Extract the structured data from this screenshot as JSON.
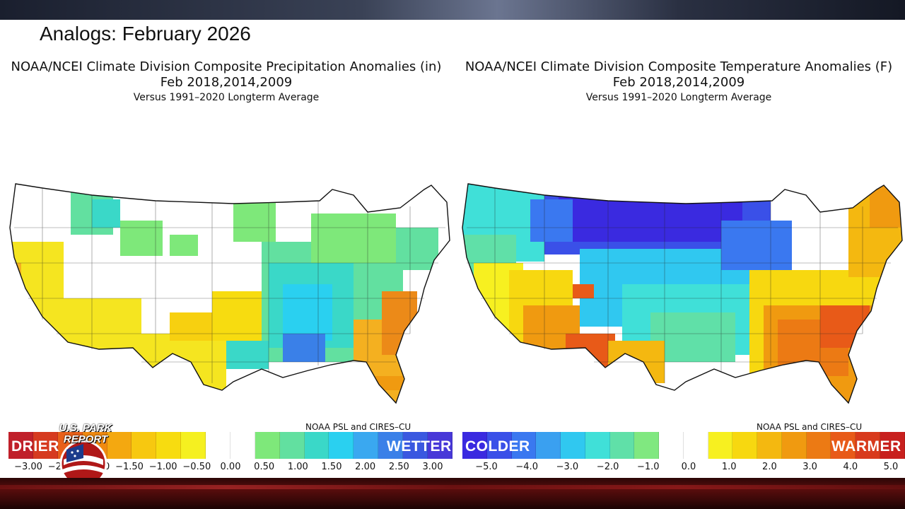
{
  "heading": "Analogs: February 2026",
  "left_panel": {
    "title_line1": "NOAA/NCEI Climate Division Composite Precipitation Anomalies (in)",
    "title_line2": "Feb   2018,2014,2009",
    "title_line3": "Versus 1991–2020 Longterm Average",
    "credit": "NOAA PSL and CIRES–CU",
    "left_word": "DRIER",
    "right_word": "WETTER",
    "ticks": [
      "−3.00",
      "−2.50",
      "−2.00",
      "−1.50",
      "−1.00",
      "−0.50",
      "0.00",
      "0.50",
      "1.00",
      "1.50",
      "2.00",
      "2.50",
      "3.00"
    ],
    "colors": [
      "#c0202a",
      "#d63a1f",
      "#e8601a",
      "#f08a10",
      "#f4a810",
      "#f7c810",
      "#f7dc10",
      "#f5f020",
      "#ffffff",
      "#ffffff",
      "#7ee87a",
      "#62e0a0",
      "#3ad8c8",
      "#2ad0f0",
      "#3aa8f0",
      "#3a80e8",
      "#3a58e0",
      "#4838d8"
    ]
  },
  "right_panel": {
    "title_line1": "NOAA/NCEI Climate Division Composite Temperature Anomalies (F)",
    "title_line2": "Feb   2018,2014,2009",
    "title_line3": "Versus 1991–2020 Longterm Average",
    "credit": "NOAA PSL and CIRES–CU",
    "left_word": "COLDER",
    "right_word": "WARMER",
    "ticks": [
      "−5.0",
      "−4.0",
      "−3.0",
      "−2.0",
      "−1.0",
      "0.0",
      "1.0",
      "2.0",
      "3.0",
      "4.0",
      "5.0"
    ],
    "colors": [
      "#3a2ae0",
      "#3a50e8",
      "#3a78f0",
      "#3aa0f0",
      "#30c8f0",
      "#40e0d8",
      "#60e0a8",
      "#80e880",
      "#ffffff",
      "#ffffff",
      "#f7f020",
      "#f7d810",
      "#f4b810",
      "#f09a10",
      "#ec7a14",
      "#e85a18",
      "#d83a1c",
      "#c8201e"
    ]
  },
  "logo": {
    "line1": "U.S. PARK",
    "line2": "REPORT"
  }
}
